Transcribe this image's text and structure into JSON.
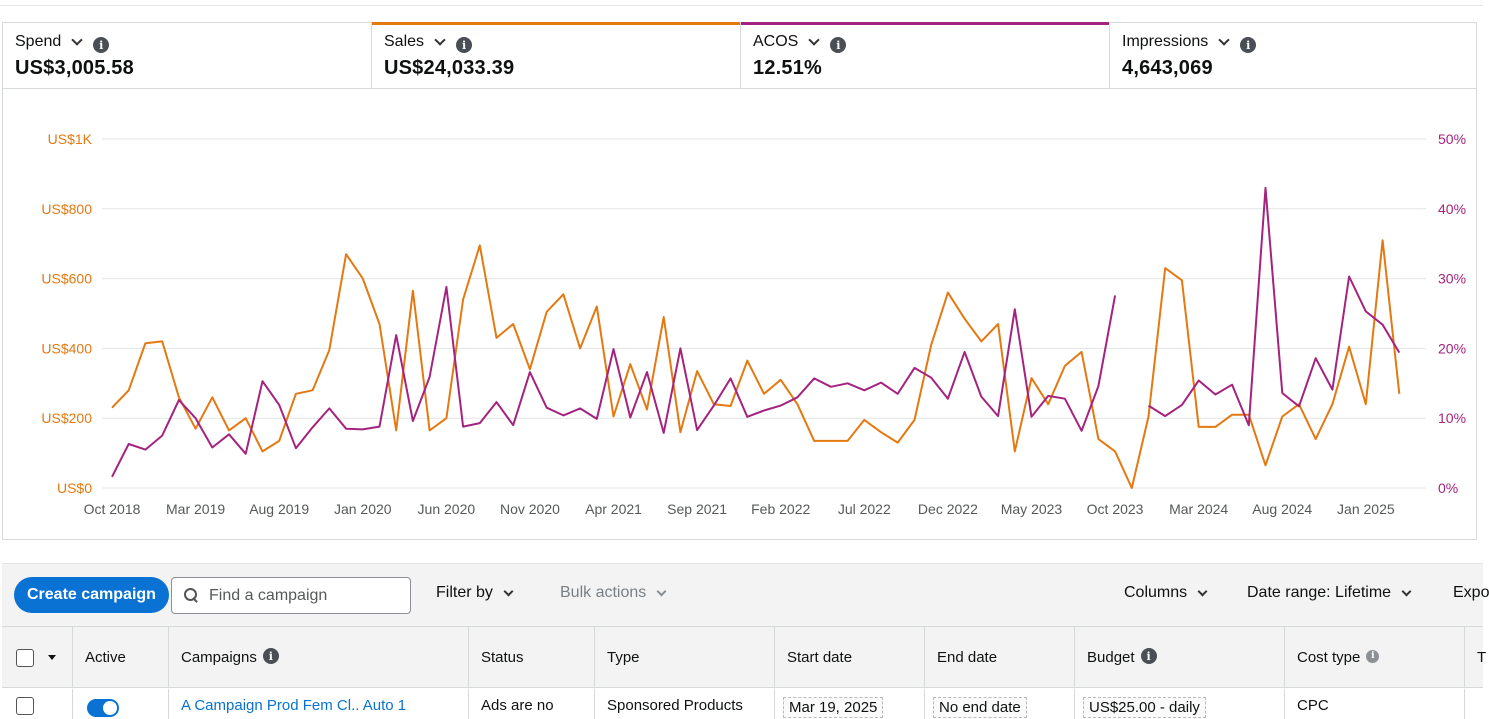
{
  "metrics": [
    {
      "label": "Spend",
      "value": "US$3,005.58",
      "accent": ""
    },
    {
      "label": "Sales",
      "value": "US$24,033.39",
      "accent": "#e47911"
    },
    {
      "label": "ACOS",
      "value": "12.51%",
      "accent": "#a4237e"
    },
    {
      "label": "Impressions",
      "value": "4,643,069",
      "accent": ""
    }
  ],
  "colors": {
    "sales": "#e47911",
    "acos": "#a4237e",
    "primary_button": "#0972d3"
  },
  "chart_data": {
    "type": "line",
    "x": [
      "Oct 2018",
      "Nov 2018",
      "Dec 2018",
      "Jan 2019",
      "Feb 2019",
      "Mar 2019",
      "Apr 2019",
      "May 2019",
      "Jun 2019",
      "Jul 2019",
      "Aug 2019",
      "Sep 2019",
      "Oct 2019",
      "Nov 2019",
      "Dec 2019",
      "Jan 2020",
      "Feb 2020",
      "Mar 2020",
      "Apr 2020",
      "May 2020",
      "Jun 2020",
      "Jul 2020",
      "Aug 2020",
      "Sep 2020",
      "Oct 2020",
      "Nov 2020",
      "Dec 2020",
      "Jan 2021",
      "Feb 2021",
      "Mar 2021",
      "Apr 2021",
      "May 2021",
      "Jun 2021",
      "Jul 2021",
      "Aug 2021",
      "Sep 2021",
      "Oct 2021",
      "Nov 2021",
      "Dec 2021",
      "Jan 2022",
      "Feb 2022",
      "Mar 2022",
      "Apr 2022",
      "May 2022",
      "Jun 2022",
      "Jul 2022",
      "Aug 2022",
      "Sep 2022",
      "Oct 2022",
      "Nov 2022",
      "Dec 2022",
      "Jan 2023",
      "Feb 2023",
      "Mar 2023",
      "Apr 2023",
      "May 2023",
      "Jun 2023",
      "Jul 2023",
      "Aug 2023",
      "Sep 2023",
      "Oct 2023",
      "Nov 2023",
      "Dec 2023",
      "Jan 2024",
      "Feb 2024",
      "Mar 2024",
      "Apr 2024",
      "May 2024",
      "Jun 2024",
      "Jul 2024",
      "Aug 2024",
      "Sep 2024",
      "Oct 2024",
      "Nov 2024",
      "Dec 2024",
      "Jan 2025",
      "Feb 2025",
      "Mar 2025",
      "Apr 2025"
    ],
    "x_ticks": [
      "Oct 2018",
      "Mar 2019",
      "Aug 2019",
      "Jan 2020",
      "Jun 2020",
      "Nov 2020",
      "Apr 2021",
      "Sep 2021",
      "Feb 2022",
      "Jul 2022",
      "Dec 2022",
      "May 2023",
      "Oct 2023",
      "Mar 2024",
      "Aug 2024",
      "Jan 2025"
    ],
    "y_left_ticks": [
      "US$0",
      "US$200",
      "US$400",
      "US$600",
      "US$800",
      "US$1K"
    ],
    "y_right_ticks": [
      "0%",
      "10%",
      "20%",
      "30%",
      "40%",
      "50%"
    ],
    "y_left_range": [
      0,
      1000
    ],
    "y_right_range": [
      0,
      50
    ],
    "grid": true,
    "series": [
      {
        "name": "Sales",
        "axis": "left",
        "values": [
          230,
          280,
          415,
          420,
          260,
          170,
          260,
          165,
          200,
          105,
          135,
          270,
          280,
          395,
          670,
          600,
          470,
          165,
          565,
          165,
          200,
          540,
          695,
          430,
          470,
          340,
          505,
          555,
          400,
          520,
          205,
          355,
          225,
          490,
          160,
          335,
          240,
          235,
          365,
          270,
          310,
          240,
          135,
          135,
          135,
          195,
          160,
          130,
          195,
          410,
          560,
          485,
          420,
          470,
          105,
          315,
          240,
          350,
          390,
          140,
          105,
          0,
          205,
          630,
          595,
          175,
          175,
          210,
          210,
          65,
          205,
          240,
          140,
          240,
          405,
          240,
          710,
          270,
          null
        ],
        "unit": "US$"
      },
      {
        "name": "ACOS",
        "axis": "right",
        "values": [
          1.6,
          6.3,
          5.5,
          7.5,
          12.6,
          10.0,
          5.8,
          7.7,
          4.9,
          15.3,
          11.9,
          5.7,
          8.7,
          11.4,
          8.5,
          8.4,
          8.8,
          21.9,
          9.6,
          15.9,
          28.8,
          8.8,
          9.3,
          12.3,
          9.0,
          16.6,
          11.5,
          10.4,
          11.4,
          9.9,
          19.9,
          10.1,
          16.6,
          7.9,
          20.0,
          8.3,
          11.8,
          15.7,
          10.2,
          11.1,
          11.8,
          13.0,
          15.7,
          14.5,
          15.0,
          14.0,
          15.1,
          13.5,
          17.2,
          15.8,
          12.8,
          19.5,
          13.1,
          10.3,
          25.6,
          10.2,
          13.2,
          12.8,
          8.2,
          14.6,
          27.6,
          null,
          11.8,
          10.3,
          11.9,
          15.4,
          13.4,
          14.8,
          9.0,
          43.0,
          13.6,
          11.7,
          18.6,
          14.1,
          30.3,
          25.3,
          23.4,
          19.4,
          null
        ],
        "unit": "%"
      }
    ]
  },
  "toolbar": {
    "create_label": "Create campaign",
    "search_placeholder": "Find a campaign",
    "filter_label": "Filter by",
    "bulk_label": "Bulk actions",
    "columns_label": "Columns",
    "date_range_label": "Date range: Lifetime",
    "export_label": "Expo"
  },
  "table": {
    "headers": [
      "Active",
      "Campaigns",
      "Status",
      "Type",
      "Start date",
      "End date",
      "Budget",
      "Cost type",
      "T"
    ],
    "row": {
      "campaign": "A Campaign Prod Fem Cl.. Auto 1",
      "status": "Ads are no",
      "type": "Sponsored Products",
      "start": "Mar 19, 2025",
      "end": "No end date",
      "budget": "US$25.00 - daily",
      "cost_type": "CPC"
    }
  }
}
